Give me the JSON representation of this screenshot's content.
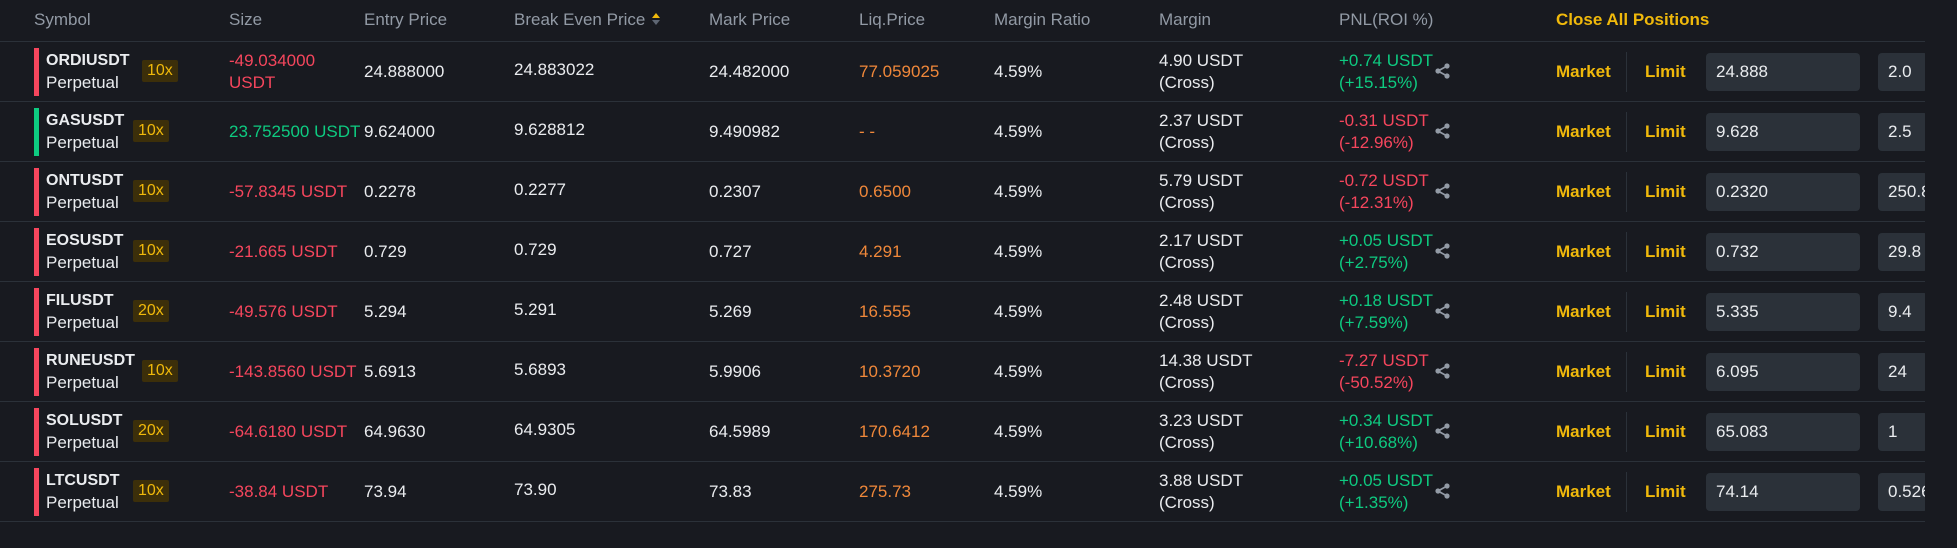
{
  "header": {
    "symbol": "Symbol",
    "size": "Size",
    "entry_price": "Entry Price",
    "break_even_price": "Break Even Price",
    "mark_price": "Mark Price",
    "liq_price": "Liq.Price",
    "margin_ratio": "Margin Ratio",
    "margin": "Margin",
    "pnl": "PNL(ROI %)",
    "close_all": "Close All Positions"
  },
  "colors": {
    "accent": "#f0b90b",
    "long": "#0ecb81",
    "short": "#f6465d",
    "liq": "#f0883a"
  },
  "positions": [
    {
      "symbol": "ORDIUSDT",
      "type": "Perpetual",
      "leverage": "10x",
      "side": "short",
      "size_line1": "-49.034000",
      "size_line2": "USDT",
      "entry": "24.888000",
      "break_even": "24.883022",
      "mark": "24.482000",
      "liq": "77.059025",
      "margin_ratio": "4.59%",
      "margin_line1": "4.90 USDT",
      "margin_line2": "(Cross)",
      "pnl": "+0.74 USDT",
      "roi": "(+15.15%)",
      "pnl_sign": "pos",
      "market": "Market",
      "limit": "Limit",
      "limit_price": "24.888",
      "qty": "2.0"
    },
    {
      "symbol": "GASUSDT",
      "type": "Perpetual",
      "leverage": "10x",
      "side": "long",
      "size_line1": "23.752500 USDT",
      "size_line2": "",
      "entry": "9.624000",
      "break_even": "9.628812",
      "mark": "9.490982",
      "liq": "- -",
      "margin_ratio": "4.59%",
      "margin_line1": "2.37 USDT",
      "margin_line2": "(Cross)",
      "pnl": "-0.31 USDT",
      "roi": "(-12.96%)",
      "pnl_sign": "neg",
      "market": "Market",
      "limit": "Limit",
      "limit_price": "9.628",
      "qty": "2.5"
    },
    {
      "symbol": "ONTUSDT",
      "type": "Perpetual",
      "leverage": "10x",
      "side": "short",
      "size_line1": "-57.8345 USDT",
      "size_line2": "",
      "entry": "0.2278",
      "break_even": "0.2277",
      "mark": "0.2307",
      "liq": "0.6500",
      "margin_ratio": "4.59%",
      "margin_line1": "5.79 USDT",
      "margin_line2": "(Cross)",
      "pnl": "-0.72 USDT",
      "roi": "(-12.31%)",
      "pnl_sign": "neg",
      "market": "Market",
      "limit": "Limit",
      "limit_price": "0.2320",
      "qty": "250.8"
    },
    {
      "symbol": "EOSUSDT",
      "type": "Perpetual",
      "leverage": "10x",
      "side": "short",
      "size_line1": "-21.665 USDT",
      "size_line2": "",
      "entry": "0.729",
      "break_even": "0.729",
      "mark": "0.727",
      "liq": "4.291",
      "margin_ratio": "4.59%",
      "margin_line1": "2.17 USDT",
      "margin_line2": "(Cross)",
      "pnl": "+0.05 USDT",
      "roi": "(+2.75%)",
      "pnl_sign": "pos",
      "market": "Market",
      "limit": "Limit",
      "limit_price": "0.732",
      "qty": "29.8"
    },
    {
      "symbol": "FILUSDT",
      "type": "Perpetual",
      "leverage": "20x",
      "side": "short",
      "size_line1": "-49.576 USDT",
      "size_line2": "",
      "entry": "5.294",
      "break_even": "5.291",
      "mark": "5.269",
      "liq": "16.555",
      "margin_ratio": "4.59%",
      "margin_line1": "2.48 USDT",
      "margin_line2": "(Cross)",
      "pnl": "+0.18 USDT",
      "roi": "(+7.59%)",
      "pnl_sign": "pos",
      "market": "Market",
      "limit": "Limit",
      "limit_price": "5.335",
      "qty": "9.4"
    },
    {
      "symbol": "RUNEUSDT",
      "type": "Perpetual",
      "leverage": "10x",
      "side": "short",
      "size_line1": "-143.8560 USDT",
      "size_line2": "",
      "entry": "5.6913",
      "break_even": "5.6893",
      "mark": "5.9906",
      "liq": "10.3720",
      "margin_ratio": "4.59%",
      "margin_line1": "14.38 USDT",
      "margin_line2": "(Cross)",
      "pnl": "-7.27 USDT",
      "roi": "(-50.52%)",
      "pnl_sign": "neg",
      "market": "Market",
      "limit": "Limit",
      "limit_price": "6.095",
      "qty": "24"
    },
    {
      "symbol": "SOLUSDT",
      "type": "Perpetual",
      "leverage": "20x",
      "side": "short",
      "size_line1": "-64.6180 USDT",
      "size_line2": "",
      "entry": "64.9630",
      "break_even": "64.9305",
      "mark": "64.5989",
      "liq": "170.6412",
      "margin_ratio": "4.59%",
      "margin_line1": "3.23 USDT",
      "margin_line2": "(Cross)",
      "pnl": "+0.34 USDT",
      "roi": "(+10.68%)",
      "pnl_sign": "pos",
      "market": "Market",
      "limit": "Limit",
      "limit_price": "65.083",
      "qty": "1"
    },
    {
      "symbol": "LTCUSDT",
      "type": "Perpetual",
      "leverage": "10x",
      "side": "short",
      "size_line1": "-38.84 USDT",
      "size_line2": "",
      "entry": "73.94",
      "break_even": "73.90",
      "mark": "73.83",
      "liq": "275.73",
      "margin_ratio": "4.59%",
      "margin_line1": "3.88 USDT",
      "margin_line2": "(Cross)",
      "pnl": "+0.05 USDT",
      "roi": "(+1.35%)",
      "pnl_sign": "pos",
      "market": "Market",
      "limit": "Limit",
      "limit_price": "74.14",
      "qty": "0.526"
    }
  ]
}
